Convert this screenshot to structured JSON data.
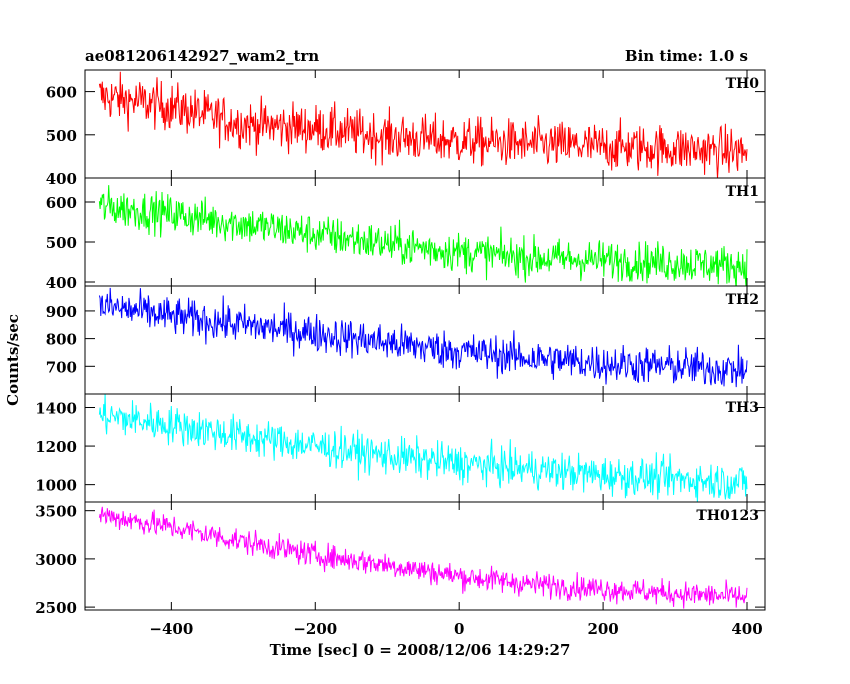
{
  "header": {
    "title": "ae081206142927_wam2_trn",
    "bin_time": "Bin time: 1.0 s"
  },
  "chart_data": {
    "type": "line",
    "title": "ae081206142927_wam2_trn",
    "subtitle": "Bin time: 1.0 s",
    "xlabel": "Time [sec] 0 = 2008/12/06 14:29:27",
    "ylabel": "Counts/sec",
    "xlim": [
      -520,
      425
    ],
    "x_ticks": [
      -400,
      -200,
      0,
      200,
      400
    ],
    "x_range_data": [
      -500,
      400
    ],
    "bin_time": 1.0,
    "grid": false,
    "legend": "none",
    "panels": [
      {
        "name": "TH0",
        "color": "#ff0000",
        "ylim": [
          400,
          650
        ],
        "y_ticks": [
          400,
          500,
          600
        ],
        "trend": [
          [
            -500,
            590
          ],
          [
            -400,
            565
          ],
          [
            -300,
            525
          ],
          [
            -200,
            515
          ],
          [
            -100,
            495
          ],
          [
            0,
            485
          ],
          [
            100,
            478
          ],
          [
            200,
            472
          ],
          [
            300,
            468
          ],
          [
            400,
            460
          ]
        ],
        "noise": 28
      },
      {
        "name": "TH1",
        "color": "#00ff00",
        "ylim": [
          390,
          660
        ],
        "y_ticks": [
          400,
          500,
          600
        ],
        "trend": [
          [
            -500,
            590
          ],
          [
            -400,
            570
          ],
          [
            -300,
            545
          ],
          [
            -200,
            520
          ],
          [
            -100,
            495
          ],
          [
            0,
            475
          ],
          [
            100,
            460
          ],
          [
            200,
            455
          ],
          [
            300,
            448
          ],
          [
            400,
            440
          ]
        ],
        "noise": 25
      },
      {
        "name": "TH2",
        "color": "#0000ff",
        "ylim": [
          600,
          990
        ],
        "y_ticks": [
          700,
          800,
          900
        ],
        "trend": [
          [
            -500,
            920
          ],
          [
            -400,
            880
          ],
          [
            -300,
            850
          ],
          [
            -200,
            820
          ],
          [
            -100,
            785
          ],
          [
            0,
            755
          ],
          [
            100,
            730
          ],
          [
            200,
            710
          ],
          [
            300,
            700
          ],
          [
            400,
            685
          ]
        ],
        "noise": 35
      },
      {
        "name": "TH3",
        "color": "#00ffff",
        "ylim": [
          910,
          1470
        ],
        "y_ticks": [
          1000,
          1200,
          1400
        ],
        "trend": [
          [
            -500,
            1360
          ],
          [
            -400,
            1310
          ],
          [
            -300,
            1250
          ],
          [
            -200,
            1200
          ],
          [
            -100,
            1150
          ],
          [
            0,
            1110
          ],
          [
            100,
            1080
          ],
          [
            200,
            1050
          ],
          [
            300,
            1030
          ],
          [
            400,
            1010
          ]
        ],
        "noise": 50
      },
      {
        "name": "TH0123",
        "color": "#ff00ff",
        "ylim": [
          2470,
          3590
        ],
        "y_ticks": [
          2500,
          3000,
          3500
        ],
        "trend": [
          [
            -500,
            3460
          ],
          [
            -400,
            3330
          ],
          [
            -300,
            3180
          ],
          [
            -200,
            3040
          ],
          [
            -100,
            2940
          ],
          [
            0,
            2820
          ],
          [
            100,
            2740
          ],
          [
            200,
            2690
          ],
          [
            300,
            2640
          ],
          [
            400,
            2600
          ]
        ],
        "noise": 65
      }
    ]
  }
}
